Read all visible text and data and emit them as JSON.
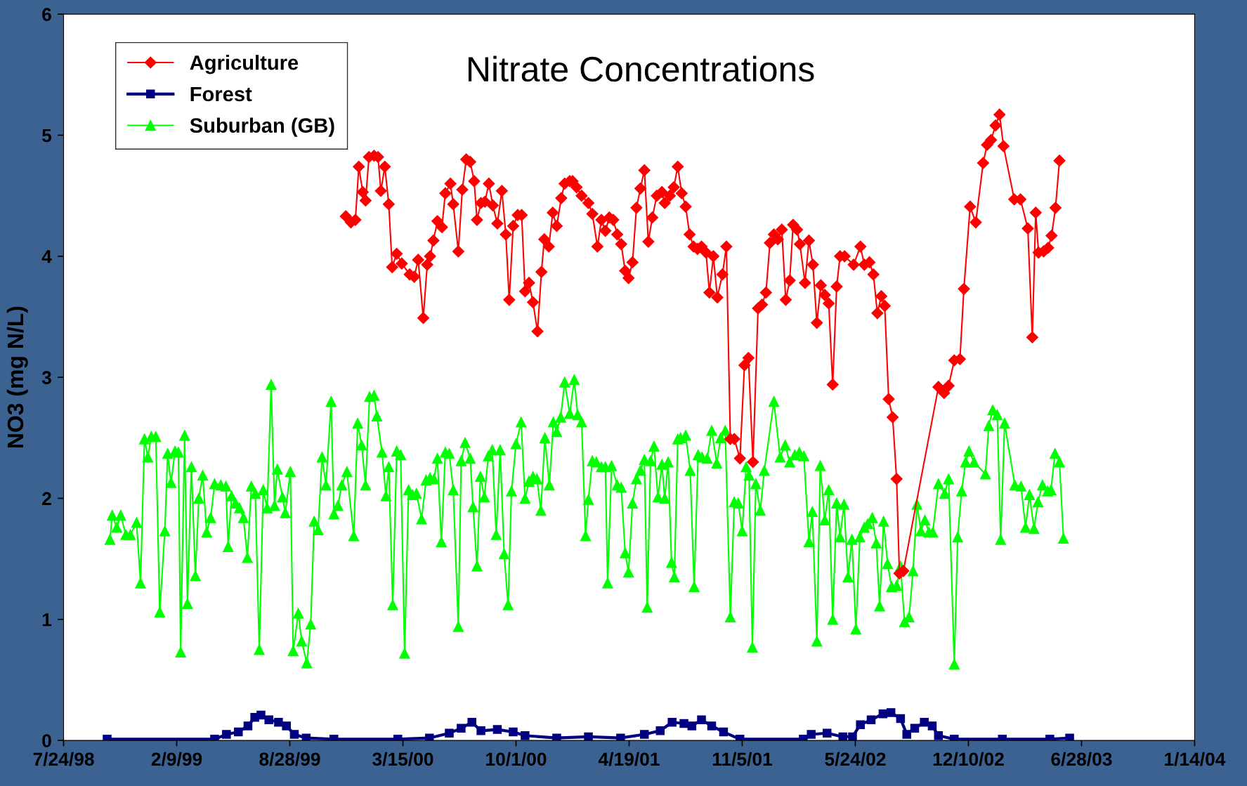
{
  "chart_data": {
    "type": "line",
    "title": "Nitrate Concentrations",
    "ylabel": "NO3 (mg N/L)",
    "xlim": [
      "1998-07-24",
      "2004-01-14"
    ],
    "xticks": [
      {
        "value": "1998-07-24",
        "label": "7/24/98"
      },
      {
        "value": "1999-02-09",
        "label": "2/9/99"
      },
      {
        "value": "1999-08-28",
        "label": "8/28/99"
      },
      {
        "value": "2000-03-15",
        "label": "3/15/00"
      },
      {
        "value": "2000-10-01",
        "label": "10/1/00"
      },
      {
        "value": "2001-04-19",
        "label": "4/19/01"
      },
      {
        "value": "2001-11-05",
        "label": "11/5/01"
      },
      {
        "value": "2002-05-24",
        "label": "5/24/02"
      },
      {
        "value": "2002-12-10",
        "label": "12/10/02"
      },
      {
        "value": "2003-06-28",
        "label": "6/28/03"
      },
      {
        "value": "2004-01-14",
        "label": "1/14/04"
      }
    ],
    "ylim": [
      0,
      6
    ],
    "yticks": [
      0,
      1,
      2,
      3,
      4,
      5,
      6
    ],
    "grid": false,
    "legend": "top left",
    "line_style": "solid",
    "series": [
      {
        "name": "Agriculture",
        "color": "#ff0000",
        "marker": "diamond",
        "x": [
          "1999-12-05",
          "1999-12-14",
          "1999-12-22",
          "1999-12-28",
          "2000-01-04",
          "2000-01-09",
          "2000-01-15",
          "2000-01-24",
          "2000-01-31",
          "2000-02-05",
          "2000-02-12",
          "2000-02-19",
          "2000-02-25",
          "2000-03-04",
          "2000-03-13",
          "2000-03-27",
          "2000-04-04",
          "2000-04-11",
          "2000-04-20",
          "2000-04-27",
          "2000-05-02",
          "2000-05-08",
          "2000-05-15",
          "2000-05-23",
          "2000-05-29",
          "2000-06-07",
          "2000-06-12",
          "2000-06-21",
          "2000-06-28",
          "2000-07-05",
          "2000-07-12",
          "2000-07-19",
          "2000-07-24",
          "2000-07-31",
          "2000-08-07",
          "2000-08-14",
          "2000-08-21",
          "2000-08-29",
          "2000-09-06",
          "2000-09-13",
          "2000-09-19",
          "2000-09-26",
          "2000-10-04",
          "2000-10-11",
          "2000-10-17",
          "2000-10-24",
          "2000-10-31",
          "2000-11-08",
          "2000-11-15",
          "2000-11-20",
          "2000-11-28",
          "2000-12-05",
          "2000-12-12",
          "2000-12-20",
          "2000-12-26",
          "2001-01-04",
          "2001-01-09",
          "2001-01-16",
          "2001-01-25",
          "2001-02-06",
          "2001-02-13",
          "2001-02-22",
          "2001-03-01",
          "2001-03-08",
          "2001-03-15",
          "2001-03-22",
          "2001-03-29",
          "2001-04-05",
          "2001-04-12",
          "2001-04-18",
          "2001-04-25",
          "2001-05-02",
          "2001-05-09",
          "2001-05-16",
          "2001-05-23",
          "2001-05-30",
          "2001-06-07",
          "2001-06-16",
          "2001-06-21",
          "2001-06-30",
          "2001-07-07",
          "2001-07-14",
          "2001-07-21",
          "2001-07-28",
          "2001-08-04",
          "2001-08-11",
          "2001-08-18",
          "2001-08-25",
          "2001-09-02",
          "2001-09-08",
          "2001-09-15",
          "2001-09-22",
          "2001-10-01",
          "2001-10-08",
          "2001-10-15",
          "2001-10-22",
          "2001-11-01",
          "2001-11-09",
          "2001-11-16",
          "2001-11-24",
          "2001-12-03",
          "2001-12-10",
          "2001-12-17",
          "2001-12-24",
          "2001-12-31",
          "2002-01-07",
          "2002-01-14",
          "2002-01-21",
          "2002-01-28",
          "2002-02-03",
          "2002-02-10",
          "2002-02-15",
          "2002-02-24",
          "2002-03-03",
          "2002-03-10",
          "2002-03-17",
          "2002-03-24",
          "2002-03-31",
          "2002-04-07",
          "2002-04-14",
          "2002-04-21",
          "2002-04-27",
          "2002-05-05",
          "2002-05-21",
          "2002-06-02",
          "2002-06-09",
          "2002-06-18",
          "2002-06-25",
          "2002-07-02",
          "2002-07-09",
          "2002-07-15",
          "2002-07-22",
          "2002-07-29",
          "2002-08-05",
          "2002-08-10",
          "2002-08-17",
          "2002-10-18",
          "2002-10-28",
          "2002-11-05",
          "2002-11-15",
          "2002-11-25",
          "2002-12-02",
          "2002-12-13",
          "2002-12-23",
          "2003-01-05",
          "2003-01-12",
          "2003-01-19",
          "2003-01-27",
          "2003-02-03",
          "2003-02-10",
          "2003-03-01",
          "2003-03-12",
          "2003-03-25",
          "2003-04-02",
          "2003-04-08",
          "2003-04-13",
          "2003-04-22",
          "2003-04-30",
          "2003-05-06",
          "2003-05-13",
          "2003-05-20"
        ],
        "values": [
          4.33,
          4.28,
          4.3,
          4.74,
          4.53,
          4.46,
          4.82,
          4.83,
          4.82,
          4.54,
          4.74,
          4.43,
          3.91,
          4.02,
          3.94,
          3.85,
          3.83,
          3.97,
          3.49,
          3.93,
          4.0,
          4.13,
          4.29,
          4.24,
          4.52,
          4.6,
          4.43,
          4.04,
          4.55,
          4.8,
          4.78,
          4.62,
          4.3,
          4.44,
          4.45,
          4.6,
          4.42,
          4.27,
          4.54,
          4.18,
          3.64,
          4.25,
          4.34,
          4.34,
          3.71,
          3.78,
          3.62,
          3.38,
          3.87,
          4.14,
          4.08,
          4.36,
          4.25,
          4.48,
          4.6,
          4.62,
          4.62,
          4.57,
          4.5,
          4.44,
          4.35,
          4.08,
          4.3,
          4.21,
          4.32,
          4.3,
          4.18,
          4.1,
          3.88,
          3.82,
          3.95,
          4.4,
          4.56,
          4.71,
          4.12,
          4.32,
          4.5,
          4.53,
          4.44,
          4.5,
          4.57,
          4.74,
          4.52,
          4.41,
          4.18,
          4.08,
          4.06,
          4.08,
          4.03,
          3.7,
          4.0,
          3.66,
          3.85,
          4.08,
          2.49,
          2.49,
          2.33,
          3.1,
          3.16,
          2.3,
          3.57,
          3.6,
          3.7,
          4.11,
          4.18,
          4.14,
          4.22,
          3.64,
          3.8,
          4.26,
          4.22,
          4.1,
          3.78,
          4.13,
          3.93,
          3.45,
          3.76,
          3.68,
          3.61,
          2.94,
          3.75,
          4.0,
          4.0,
          3.93,
          4.08,
          3.93,
          3.95,
          3.85,
          3.53,
          3.67,
          3.59,
          2.82,
          2.67,
          2.16,
          1.38,
          1.4,
          2.92,
          2.87,
          2.93,
          3.14,
          3.15,
          3.73,
          4.41,
          4.28,
          4.77,
          4.92,
          4.96,
          5.08,
          5.17,
          4.91,
          4.47,
          4.47,
          4.23,
          3.33,
          4.36,
          4.03,
          4.04,
          4.07,
          4.17,
          4.4,
          4.79
        ]
      },
      {
        "name": "Forest",
        "color": "#000080",
        "marker": "square",
        "x": [
          "1998-10-09",
          "1999-04-17",
          "1999-05-08",
          "1999-05-29",
          "1999-06-15",
          "1999-06-27",
          "1999-07-08",
          "1999-07-22",
          "1999-08-08",
          "1999-08-22",
          "1999-09-05",
          "1999-09-26",
          "1999-11-14",
          "2000-03-06",
          "2000-05-01",
          "2000-06-05",
          "2000-06-26",
          "2000-07-15",
          "2000-07-31",
          "2000-08-29",
          "2000-09-26",
          "2000-10-17",
          "2000-12-12",
          "2001-02-06",
          "2001-04-04",
          "2001-05-16",
          "2001-06-13",
          "2001-07-04",
          "2001-07-25",
          "2001-08-08",
          "2001-08-25",
          "2001-09-12",
          "2001-10-03",
          "2001-11-01",
          "2002-02-21",
          "2002-03-07",
          "2002-04-04",
          "2002-05-02",
          "2002-05-19",
          "2002-06-02",
          "2002-06-21",
          "2002-07-12",
          "2002-07-26",
          "2002-08-12",
          "2002-08-23",
          "2002-09-06",
          "2002-09-23",
          "2002-10-07",
          "2002-10-18",
          "2002-11-15",
          "2003-02-08",
          "2003-05-03",
          "2003-06-07"
        ],
        "values": [
          0.01,
          0.01,
          0.05,
          0.07,
          0.12,
          0.19,
          0.21,
          0.17,
          0.15,
          0.12,
          0.05,
          0.02,
          0.01,
          0.01,
          0.02,
          0.06,
          0.1,
          0.15,
          0.08,
          0.09,
          0.07,
          0.04,
          0.02,
          0.03,
          0.02,
          0.05,
          0.08,
          0.15,
          0.14,
          0.12,
          0.17,
          0.12,
          0.07,
          0.01,
          0.01,
          0.05,
          0.06,
          0.03,
          0.03,
          0.13,
          0.17,
          0.22,
          0.23,
          0.18,
          0.05,
          0.1,
          0.15,
          0.12,
          0.04,
          0.01,
          0.01,
          0.01,
          0.02
        ]
      },
      {
        "name": "Suburban (GB)",
        "color": "#00ff00",
        "marker": "triangle",
        "x": [
          "1998-10-14",
          "1998-10-18",
          "1998-10-26",
          "1998-11-02",
          "1998-11-11",
          "1998-11-19",
          "1998-11-30",
          "1998-12-07",
          "1998-12-14",
          "1998-12-20",
          "1998-12-26",
          "1999-01-03",
          "1999-01-10",
          "1999-01-19",
          "1999-01-24",
          "1999-01-30",
          "1999-02-06",
          "1999-02-12",
          "1999-02-16",
          "1999-02-23",
          "1999-02-28",
          "1999-03-07",
          "1999-03-14",
          "1999-03-20",
          "1999-03-27",
          "1999-04-03",
          "1999-04-10",
          "1999-04-17",
          "1999-04-28",
          "1999-05-07",
          "1999-05-11",
          "1999-05-17",
          "1999-05-24",
          "1999-05-31",
          "1999-06-07",
          "1999-06-14",
          "1999-06-21",
          "1999-06-28",
          "1999-07-05",
          "1999-07-12",
          "1999-07-19",
          "1999-07-26",
          "1999-08-01",
          "1999-08-06",
          "1999-08-15",
          "1999-08-20",
          "1999-08-29",
          "1999-09-03",
          "1999-09-12",
          "1999-09-18",
          "1999-09-27",
          "1999-10-04",
          "1999-10-10",
          "1999-10-17",
          "1999-10-24",
          "1999-10-31",
          "1999-11-09",
          "1999-11-14",
          "1999-11-21",
          "1999-11-28",
          "1999-12-07",
          "1999-12-19",
          "1999-12-26",
          "2000-01-02",
          "2000-01-09",
          "2000-01-16",
          "2000-01-24",
          "2000-01-29",
          "2000-02-07",
          "2000-02-14",
          "2000-02-19",
          "2000-02-26",
          "2000-03-04",
          "2000-03-11",
          "2000-03-18",
          "2000-03-25",
          "2000-04-01",
          "2000-04-08",
          "2000-04-17",
          "2000-04-25",
          "2000-05-02",
          "2000-05-09",
          "2000-05-15",
          "2000-05-22",
          "2000-05-29",
          "2000-06-05",
          "2000-06-12",
          "2000-06-21",
          "2000-06-26",
          "2000-07-03",
          "2000-07-12",
          "2000-07-17",
          "2000-07-24",
          "2000-07-30",
          "2000-08-06",
          "2000-08-13",
          "2000-08-20",
          "2000-08-27",
          "2000-09-03",
          "2000-09-10",
          "2000-09-17",
          "2000-09-23",
          "2000-10-01",
          "2000-10-10",
          "2000-10-17",
          "2000-10-24",
          "2000-10-31",
          "2000-11-07",
          "2000-11-14",
          "2000-11-21",
          "2000-11-29",
          "2000-12-06",
          "2000-12-12",
          "2000-12-19",
          "2000-12-26",
          "2001-01-04",
          "2001-01-12",
          "2001-01-18",
          "2001-01-25",
          "2001-02-01",
          "2001-02-06",
          "2001-02-13",
          "2001-02-20",
          "2001-03-01",
          "2001-03-08",
          "2001-03-12",
          "2001-03-19",
          "2001-03-29",
          "2001-04-05",
          "2001-04-12",
          "2001-04-18",
          "2001-04-25",
          "2001-05-02",
          "2001-05-09",
          "2001-05-16",
          "2001-05-21",
          "2001-05-27",
          "2001-06-02",
          "2001-06-09",
          "2001-06-16",
          "2001-06-21",
          "2001-06-27",
          "2001-07-03",
          "2001-07-08",
          "2001-07-14",
          "2001-07-19",
          "2001-07-28",
          "2001-08-05",
          "2001-08-12",
          "2001-08-19",
          "2001-08-26",
          "2001-09-04",
          "2001-09-12",
          "2001-09-21",
          "2001-09-28",
          "2001-10-06",
          "2001-10-15",
          "2001-10-22",
          "2001-10-29",
          "2001-11-05",
          "2001-11-12",
          "2001-11-17",
          "2001-11-23",
          "2001-11-29",
          "2001-12-07",
          "2001-12-14",
          "2001-12-31",
          "2002-01-11",
          "2002-01-20",
          "2002-01-28",
          "2002-02-06",
          "2002-02-14",
          "2002-02-22",
          "2002-03-03",
          "2002-03-09",
          "2002-03-17",
          "2002-03-23",
          "2002-03-31",
          "2002-04-07",
          "2002-04-14",
          "2002-04-21",
          "2002-04-27",
          "2002-05-04",
          "2002-05-11",
          "2002-05-18",
          "2002-05-25",
          "2002-06-01",
          "2002-06-09",
          "2002-06-15",
          "2002-06-23",
          "2002-06-30",
          "2002-07-06",
          "2002-07-13",
          "2002-07-20",
          "2002-07-27",
          "2002-08-05",
          "2002-08-12",
          "2002-08-19",
          "2002-08-27",
          "2002-09-03",
          "2002-09-10",
          "2002-09-17",
          "2002-09-24",
          "2002-10-01",
          "2002-10-08",
          "2002-10-18",
          "2002-10-29",
          "2002-11-05",
          "2002-11-15",
          "2002-11-21",
          "2002-11-28",
          "2002-12-05",
          "2002-12-11",
          "2002-12-20",
          "2003-01-09",
          "2003-01-15",
          "2003-01-22",
          "2003-01-30",
          "2003-02-05",
          "2003-02-12",
          "2003-03-02",
          "2003-03-13",
          "2003-03-21",
          "2003-03-28",
          "2003-04-05",
          "2003-04-12",
          "2003-04-20",
          "2003-04-29",
          "2003-05-05",
          "2003-05-12",
          "2003-05-20",
          "2003-05-27"
        ],
        "values": [
          1.66,
          1.86,
          1.76,
          1.86,
          1.7,
          1.7,
          1.8,
          1.3,
          2.49,
          2.34,
          2.51,
          2.51,
          1.06,
          1.73,
          2.37,
          2.13,
          2.39,
          2.38,
          0.73,
          2.52,
          1.13,
          2.26,
          1.36,
          2.0,
          2.19,
          1.72,
          1.84,
          2.12,
          2.11,
          2.1,
          1.6,
          2.02,
          1.96,
          1.92,
          1.84,
          1.51,
          2.1,
          2.04,
          0.75,
          2.07,
          1.92,
          2.94,
          1.94,
          2.24,
          2.01,
          1.88,
          2.22,
          0.74,
          1.05,
          0.82,
          0.64,
          0.96,
          1.81,
          1.74,
          2.34,
          2.11,
          2.8,
          1.87,
          1.94,
          2.11,
          2.22,
          1.69,
          2.62,
          2.44,
          2.11,
          2.84,
          2.85,
          2.68,
          2.38,
          2.02,
          2.26,
          1.12,
          2.39,
          2.36,
          0.72,
          2.07,
          2.03,
          2.04,
          1.83,
          2.15,
          2.17,
          2.16,
          2.33,
          1.64,
          2.38,
          2.37,
          2.07,
          0.94,
          2.31,
          2.46,
          2.33,
          1.93,
          1.44,
          2.18,
          2.01,
          2.35,
          2.4,
          1.7,
          2.4,
          1.54,
          1.12,
          2.06,
          2.45,
          2.63,
          2.0,
          2.14,
          2.18,
          2.16,
          1.9,
          2.5,
          2.11,
          2.63,
          2.55,
          2.67,
          2.96,
          2.7,
          2.98,
          2.69,
          2.63,
          1.69,
          1.99,
          2.31,
          2.3,
          2.26,
          2.26,
          1.3,
          2.27,
          2.11,
          2.09,
          1.55,
          1.39,
          1.96,
          2.16,
          2.23,
          2.32,
          1.1,
          2.31,
          2.43,
          2.01,
          2.28,
          2.0,
          2.3,
          1.47,
          1.35,
          2.49,
          2.5,
          2.52,
          2.23,
          1.27,
          2.36,
          2.34,
          2.33,
          2.56,
          2.29,
          2.5,
          2.56,
          1.02,
          1.97,
          1.96,
          1.73,
          2.26,
          2.19,
          0.77,
          2.12,
          1.9,
          2.23,
          2.8,
          2.34,
          2.44,
          2.3,
          2.36,
          2.38,
          2.35,
          1.64,
          1.89,
          0.82,
          2.27,
          1.82,
          2.07,
          1.0,
          1.96,
          1.68,
          1.95,
          1.35,
          1.66,
          0.92,
          1.68,
          1.76,
          1.79,
          1.84,
          1.63,
          1.11,
          1.81,
          1.46,
          1.27,
          1.28,
          1.44,
          0.98,
          1.02,
          1.4,
          1.95,
          1.73,
          1.82,
          1.72,
          1.72,
          2.12,
          2.04,
          2.16,
          0.63,
          1.68,
          2.06,
          2.3,
          2.39,
          2.3,
          2.2,
          2.6,
          2.73,
          2.69,
          1.66,
          2.62,
          2.11,
          2.1,
          1.76,
          2.03,
          1.75,
          1.97,
          2.11,
          2.06,
          2.07,
          2.37,
          2.3,
          1.67
        ]
      }
    ]
  }
}
